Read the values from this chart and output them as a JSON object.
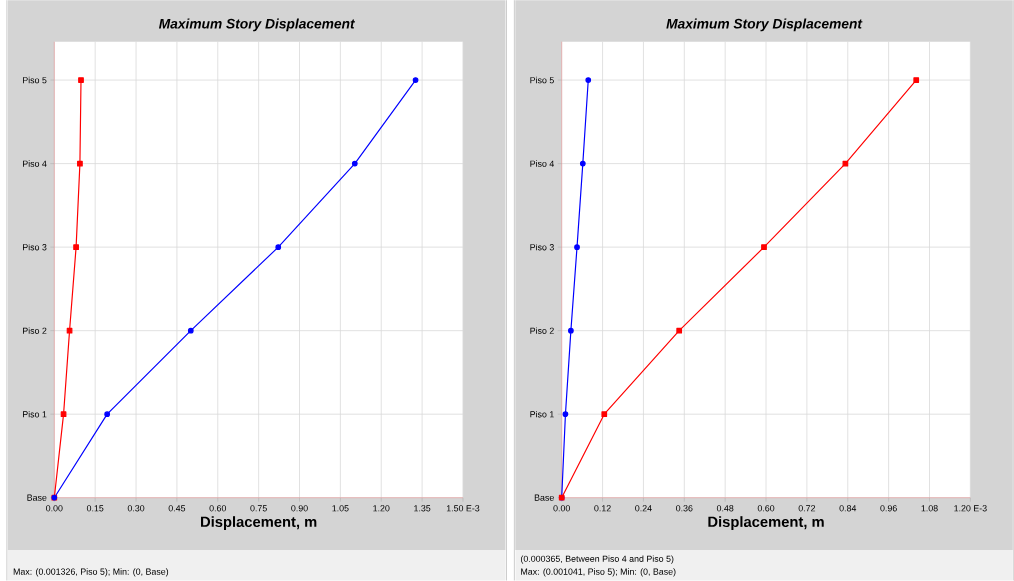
{
  "chart_data": [
    {
      "type": "line",
      "orientation": "horizontal",
      "title": "Maximum Story Displacement",
      "xlabel": "Displacement, m",
      "categories": [
        "Piso 5",
        "Piso 4",
        "Piso 3",
        "Piso 2",
        "Piso 1",
        "Base"
      ],
      "xlim": [
        0,
        1.5
      ],
      "xticks": [
        {
          "value": 0,
          "label": "0.00"
        },
        {
          "value": 0.15,
          "label": "0.15"
        },
        {
          "value": 0.3,
          "label": "0.30"
        },
        {
          "value": 0.45,
          "label": "0.45"
        },
        {
          "value": 0.6,
          "label": "0.60"
        },
        {
          "value": 0.75,
          "label": "0.75"
        },
        {
          "value": 0.9,
          "label": "0.90"
        },
        {
          "value": 1.05,
          "label": "1.05"
        },
        {
          "value": 1.2,
          "label": "1.20"
        },
        {
          "value": 1.35,
          "label": "1.35"
        },
        {
          "value": 1.5,
          "label": "1.50 E-3"
        }
      ],
      "grid": true,
      "series": [
        {
          "color": "#ff0000",
          "marker": "square",
          "values": [
            0.098,
            0.094,
            0.08,
            0.056,
            0.034,
            0
          ]
        },
        {
          "color": "#0000ff",
          "marker": "circle",
          "values": [
            1.326,
            1.103,
            0.822,
            0.501,
            0.194,
            0
          ]
        }
      ],
      "annotations": [
        "Max: (0.001326, Piso 5);   Min: (0, Base)"
      ]
    },
    {
      "type": "line",
      "orientation": "horizontal",
      "title": "Maximum Story Displacement",
      "xlabel": "Displacement, m",
      "categories": [
        "Piso 5",
        "Piso 4",
        "Piso 3",
        "Piso 2",
        "Piso 1",
        "Base"
      ],
      "xlim": [
        0,
        1.2
      ],
      "xticks": [
        {
          "value": 0,
          "label": "0.00"
        },
        {
          "value": 0.12,
          "label": "0.12"
        },
        {
          "value": 0.24,
          "label": "0.24"
        },
        {
          "value": 0.36,
          "label": "0.36"
        },
        {
          "value": 0.48,
          "label": "0.48"
        },
        {
          "value": 0.6,
          "label": "0.60"
        },
        {
          "value": 0.72,
          "label": "0.72"
        },
        {
          "value": 0.84,
          "label": "0.84"
        },
        {
          "value": 0.96,
          "label": "0.96"
        },
        {
          "value": 1.08,
          "label": "1.08"
        },
        {
          "value": 1.2,
          "label": "1.20 E-3"
        }
      ],
      "grid": true,
      "series": [
        {
          "color": "#0000ff",
          "marker": "circle",
          "values": [
            0.078,
            0.062,
            0.045,
            0.027,
            0.011,
            0
          ]
        },
        {
          "color": "#ff0000",
          "marker": "square",
          "values": [
            1.041,
            0.833,
            0.594,
            0.345,
            0.125,
            0
          ]
        }
      ],
      "annotations": [
        "(0.000365, Between Piso 4 and Piso 5)",
        "Max: (0.001041, Piso 5);   Min: (0, Base)"
      ]
    }
  ]
}
